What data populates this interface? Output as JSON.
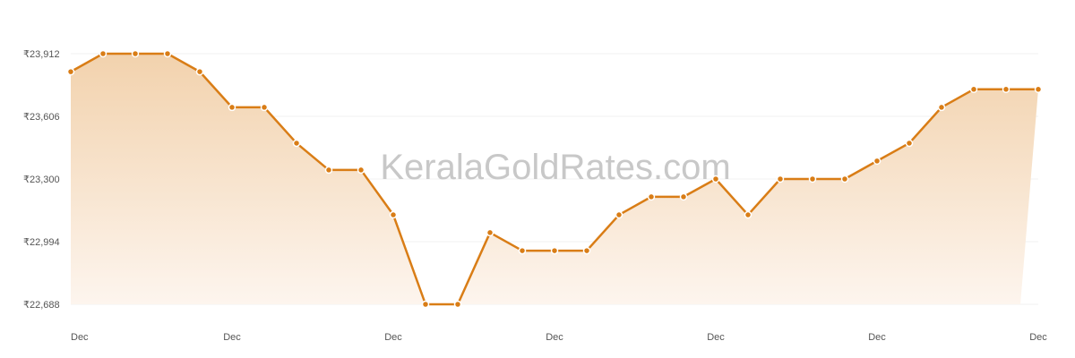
{
  "chart_data": {
    "type": "area",
    "watermark": "KeralaGoldRates.com",
    "y_ticks": [
      "₹23,912",
      "₹23,606",
      "₹23,300",
      "₹22,994",
      "₹22,688"
    ],
    "x_tick_labels": [
      "Dec",
      "Dec",
      "Dec",
      "Dec",
      "Dec",
      "Dec",
      "Dec"
    ],
    "ylim": [
      22688,
      23912
    ],
    "grid": true,
    "colors": {
      "line": "#d97d16",
      "fill_top": "#f2d2ad",
      "fill_bottom": "#fdf5ee",
      "marker_fill": "#d97d16",
      "marker_stroke": "#ffffff",
      "grid": "#f0f0f0",
      "watermark": "#c8c8c8"
    },
    "series": [
      {
        "values": [
          23824,
          23912,
          23912,
          23912,
          23824,
          23650,
          23650,
          23475,
          23344,
          23344,
          23125,
          22688,
          22688,
          23038,
          22950,
          22950,
          22950,
          23125,
          23213,
          23213,
          23300,
          23125,
          23300,
          23300,
          23300,
          23388,
          23475,
          23650,
          23738,
          23738,
          23738
        ]
      }
    ]
  }
}
